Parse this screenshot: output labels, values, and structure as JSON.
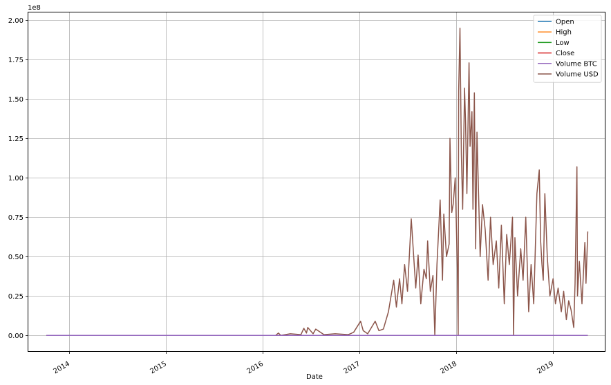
{
  "chart_data": {
    "type": "line",
    "xlabel": "Date",
    "ylabel": "",
    "y_offset_label": "1e8",
    "xlim": [
      "2013-08-01",
      "2019-07-15"
    ],
    "ylim": [
      -10000000,
      205000000
    ],
    "x_ticks": [
      {
        "date": "2014-01-01",
        "label": "2014"
      },
      {
        "date": "2015-01-01",
        "label": "2015"
      },
      {
        "date": "2016-01-01",
        "label": "2016"
      },
      {
        "date": "2017-01-01",
        "label": "2017"
      },
      {
        "date": "2018-01-01",
        "label": "2018"
      },
      {
        "date": "2019-01-01",
        "label": "2019"
      }
    ],
    "y_ticks": [
      {
        "value": 0,
        "label": "0.00"
      },
      {
        "value": 25000000,
        "label": "0.25"
      },
      {
        "value": 50000000,
        "label": "0.50"
      },
      {
        "value": 75000000,
        "label": "0.75"
      },
      {
        "value": 100000000,
        "label": "1.00"
      },
      {
        "value": 125000000,
        "label": "1.25"
      },
      {
        "value": 150000000,
        "label": "1.50"
      },
      {
        "value": 175000000,
        "label": "1.75"
      },
      {
        "value": 200000000,
        "label": "2.00"
      }
    ],
    "grid": true,
    "legend_position": "top-right",
    "series": [
      {
        "name": "Open",
        "color": "#1f77b4",
        "x": [
          "2013-10-08",
          "2019-05-12"
        ],
        "values": [
          0,
          0
        ]
      },
      {
        "name": "High",
        "color": "#ff7f0e",
        "x": [
          "2013-10-08",
          "2019-05-12"
        ],
        "values": [
          0,
          0
        ]
      },
      {
        "name": "Low",
        "color": "#2ca02c",
        "x": [
          "2013-10-08",
          "2019-05-12"
        ],
        "values": [
          0,
          0
        ]
      },
      {
        "name": "Close",
        "color": "#d62728",
        "x": [
          "2013-10-08",
          "2019-05-12"
        ],
        "values": [
          0,
          0
        ]
      },
      {
        "name": "Volume BTC",
        "color": "#9467bd",
        "x": [
          "2013-10-08",
          "2019-05-12"
        ],
        "values": [
          0,
          0
        ]
      },
      {
        "name": "Volume USD",
        "color": "#8c564b",
        "x": [
          "2013-10-08",
          "2016-02-20",
          "2016-03-01",
          "2016-03-10",
          "2016-04-15",
          "2016-05-25",
          "2016-06-05",
          "2016-06-15",
          "2016-06-20",
          "2016-07-10",
          "2016-07-20",
          "2016-08-20",
          "2016-10-01",
          "2016-11-20",
          "2016-12-10",
          "2017-01-05",
          "2017-01-15",
          "2017-02-01",
          "2017-03-01",
          "2017-03-15",
          "2017-04-01",
          "2017-04-20",
          "2017-05-10",
          "2017-05-20",
          "2017-06-01",
          "2017-06-10",
          "2017-06-20",
          "2017-07-01",
          "2017-07-15",
          "2017-08-01",
          "2017-08-10",
          "2017-08-20",
          "2017-09-01",
          "2017-09-10",
          "2017-09-15",
          "2017-09-25",
          "2017-10-05",
          "2017-10-12",
          "2017-10-20",
          "2017-11-01",
          "2017-11-10",
          "2017-11-15",
          "2017-11-25",
          "2017-12-05",
          "2017-12-08",
          "2017-12-15",
          "2017-12-20",
          "2017-12-28",
          "2018-01-05",
          "2018-01-08",
          "2018-01-10",
          "2018-01-15",
          "2018-01-20",
          "2018-01-25",
          "2018-02-01",
          "2018-02-05",
          "2018-02-10",
          "2018-02-18",
          "2018-02-22",
          "2018-03-01",
          "2018-03-05",
          "2018-03-10",
          "2018-03-15",
          "2018-03-20",
          "2018-04-01",
          "2018-04-10",
          "2018-04-20",
          "2018-05-01",
          "2018-05-10",
          "2018-05-20",
          "2018-06-01",
          "2018-06-10",
          "2018-06-20",
          "2018-07-01",
          "2018-07-10",
          "2018-07-20",
          "2018-08-01",
          "2018-08-05",
          "2018-08-10",
          "2018-08-20",
          "2018-09-01",
          "2018-09-10",
          "2018-09-20",
          "2018-10-01",
          "2018-10-10",
          "2018-10-20",
          "2018-11-01",
          "2018-11-10",
          "2018-11-15",
          "2018-11-20",
          "2018-11-25",
          "2018-12-01",
          "2018-12-10",
          "2018-12-20",
          "2019-01-01",
          "2019-01-10",
          "2019-01-20",
          "2019-02-01",
          "2019-02-10",
          "2019-02-20",
          "2019-03-01",
          "2019-03-10",
          "2019-03-20",
          "2019-03-25",
          "2019-04-01",
          "2019-04-03",
          "2019-04-10",
          "2019-04-20",
          "2019-05-01",
          "2019-05-05",
          "2019-05-12"
        ],
        "values": [
          0,
          0,
          1500000,
          0,
          1000000,
          500000,
          4500000,
          1500000,
          5000000,
          1000000,
          4000000,
          500000,
          1000000,
          500000,
          2000000,
          9000000,
          3000000,
          1000000,
          9000000,
          3000000,
          4000000,
          15000000,
          35000000,
          18000000,
          36000000,
          20000000,
          45000000,
          28000000,
          74000000,
          30000000,
          51000000,
          20000000,
          42000000,
          36000000,
          60000000,
          28000000,
          38000000,
          0,
          45000000,
          86000000,
          35000000,
          77000000,
          50000000,
          58000000,
          125000000,
          78000000,
          83000000,
          100000000,
          43000000,
          0,
          155000000,
          195000000,
          115000000,
          80000000,
          157000000,
          135000000,
          90000000,
          173000000,
          120000000,
          142000000,
          80000000,
          154000000,
          55000000,
          129000000,
          50000000,
          83000000,
          67000000,
          35000000,
          75000000,
          45000000,
          60000000,
          30000000,
          70000000,
          20000000,
          64000000,
          45000000,
          75000000,
          0,
          62000000,
          25000000,
          55000000,
          35000000,
          75000000,
          15000000,
          45000000,
          20000000,
          90000000,
          105000000,
          60000000,
          45000000,
          35000000,
          90000000,
          50000000,
          25000000,
          36000000,
          20000000,
          30000000,
          15000000,
          28000000,
          10000000,
          22000000,
          16000000,
          5000000,
          33000000,
          107000000,
          25000000,
          47000000,
          20000000,
          59000000,
          33000000,
          66000000
        ]
      }
    ]
  }
}
